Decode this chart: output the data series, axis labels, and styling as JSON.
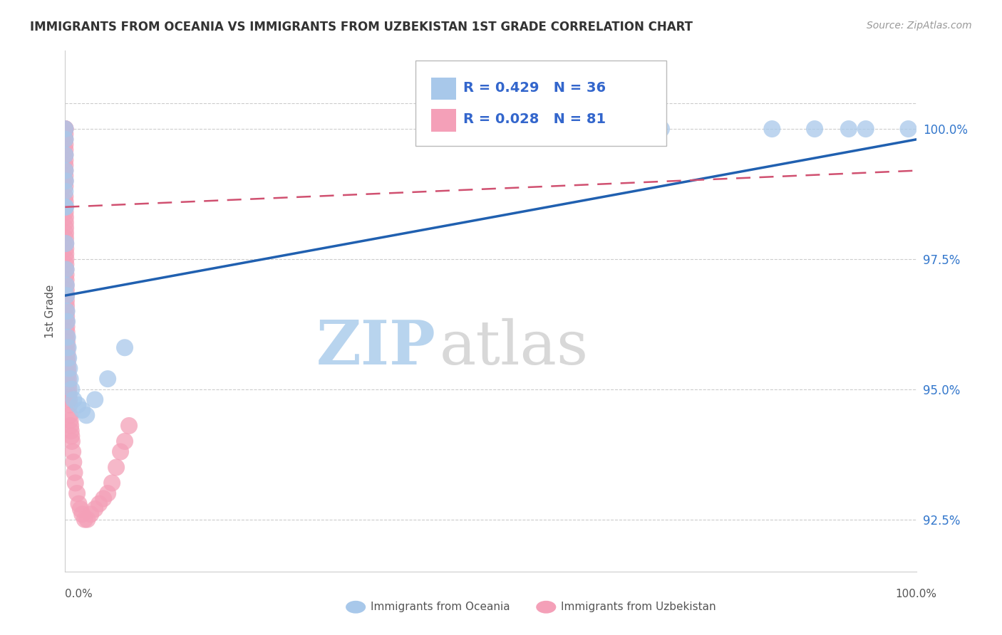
{
  "title": "IMMIGRANTS FROM OCEANIA VS IMMIGRANTS FROM UZBEKISTAN 1ST GRADE CORRELATION CHART",
  "source": "Source: ZipAtlas.com",
  "ylabel": "1st Grade",
  "x_min": 0.0,
  "x_max": 100.0,
  "y_min": 91.5,
  "y_max": 101.5,
  "y_ticks": [
    92.5,
    95.0,
    97.5,
    100.0
  ],
  "y_tick_labels": [
    "92.5%",
    "95.0%",
    "97.5%",
    "100.0%"
  ],
  "oceania_color": "#a8c8ea",
  "oceania_line": "#2060b0",
  "uzbekistan_color": "#f4a0b8",
  "uzbekistan_line": "#d05070",
  "R_oceania": 0.429,
  "N_oceania": 36,
  "R_uzbekistan": 0.028,
  "N_uzbekistan": 81,
  "watermark_zip": "ZIP",
  "watermark_atlas": "atlas",
  "label_oceania": "Immigrants from Oceania",
  "label_uzbekistan": "Immigrants from Uzbekistan",
  "oceania_x": [
    0.0,
    0.0,
    0.0,
    0.0,
    0.0,
    0.0,
    0.03,
    0.05,
    0.07,
    0.1,
    0.12,
    0.15,
    0.18,
    0.22,
    0.28,
    0.35,
    0.4,
    0.5,
    0.6,
    0.75,
    1.0,
    1.5,
    2.0,
    2.5,
    3.5,
    5.0,
    7.0,
    49.0,
    51.0,
    67.0,
    70.0,
    83.0,
    88.0,
    92.0,
    94.0,
    99.0
  ],
  "oceania_y": [
    100.0,
    99.8,
    99.5,
    99.2,
    98.8,
    98.5,
    99.0,
    98.5,
    97.8,
    97.3,
    97.0,
    96.8,
    96.5,
    96.3,
    96.0,
    95.8,
    95.6,
    95.4,
    95.2,
    95.0,
    94.8,
    94.7,
    94.6,
    94.5,
    94.8,
    95.2,
    95.8,
    100.0,
    100.0,
    100.0,
    100.0,
    100.0,
    100.0,
    100.0,
    100.0,
    100.0
  ],
  "uzbekistan_x": [
    0.0,
    0.0,
    0.0,
    0.0,
    0.0,
    0.0,
    0.0,
    0.0,
    0.0,
    0.0,
    0.0,
    0.0,
    0.0,
    0.0,
    0.0,
    0.02,
    0.02,
    0.02,
    0.04,
    0.04,
    0.05,
    0.05,
    0.05,
    0.06,
    0.07,
    0.07,
    0.08,
    0.08,
    0.09,
    0.1,
    0.1,
    0.11,
    0.12,
    0.12,
    0.13,
    0.14,
    0.15,
    0.15,
    0.17,
    0.18,
    0.19,
    0.2,
    0.22,
    0.23,
    0.25,
    0.27,
    0.3,
    0.32,
    0.35,
    0.38,
    0.4,
    0.42,
    0.45,
    0.48,
    0.5,
    0.55,
    0.6,
    0.65,
    0.7,
    0.75,
    0.8,
    0.9,
    1.0,
    1.1,
    1.2,
    1.4,
    1.6,
    1.8,
    2.0,
    2.3,
    2.6,
    3.0,
    3.5,
    4.0,
    4.5,
    5.0,
    5.5,
    6.0,
    6.5,
    7.0,
    7.5
  ],
  "uzbekistan_y": [
    100.0,
    100.0,
    100.0,
    99.9,
    99.8,
    99.7,
    99.6,
    99.5,
    99.4,
    99.3,
    99.2,
    99.1,
    99.0,
    98.9,
    98.7,
    98.6,
    98.5,
    98.4,
    98.3,
    98.2,
    98.1,
    98.0,
    97.9,
    97.8,
    97.7,
    97.6,
    97.5,
    97.4,
    97.3,
    97.2,
    97.1,
    97.0,
    96.9,
    96.8,
    96.7,
    96.6,
    96.5,
    96.4,
    96.3,
    96.2,
    96.1,
    96.0,
    95.9,
    95.8,
    95.7,
    95.6,
    95.5,
    95.4,
    95.3,
    95.2,
    95.1,
    95.0,
    94.9,
    94.8,
    94.7,
    94.5,
    94.4,
    94.3,
    94.2,
    94.1,
    94.0,
    93.8,
    93.6,
    93.4,
    93.2,
    93.0,
    92.8,
    92.7,
    92.6,
    92.5,
    92.5,
    92.6,
    92.7,
    92.8,
    92.9,
    93.0,
    93.2,
    93.5,
    93.8,
    94.0,
    94.3
  ],
  "oce_trend_x0": 0.0,
  "oce_trend_x1": 100.0,
  "oce_trend_y0": 96.8,
  "oce_trend_y1": 99.8,
  "uzb_trend_x0": 0.0,
  "uzb_trend_x1": 100.0,
  "uzb_trend_y0": 98.5,
  "uzb_trend_y1": 99.2
}
